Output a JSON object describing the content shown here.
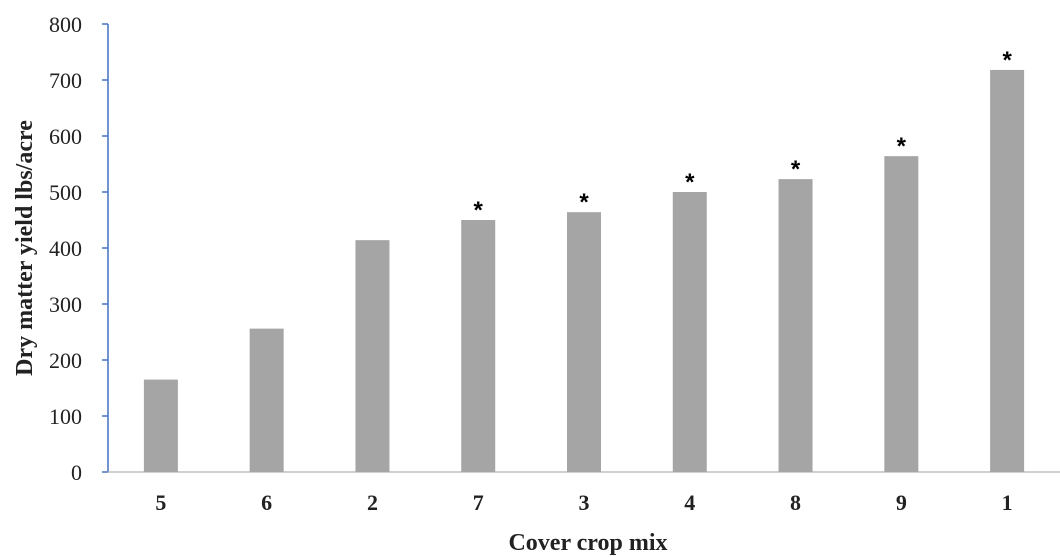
{
  "chart_data": {
    "type": "bar",
    "categories": [
      "5",
      "6",
      "2",
      "7",
      "3",
      "4",
      "8",
      "9",
      "1"
    ],
    "values": [
      165,
      256,
      414,
      450,
      464,
      500,
      523,
      564,
      718
    ],
    "significance": [
      "",
      "",
      "",
      "*",
      "*",
      "*",
      "*",
      "*",
      "*"
    ],
    "xlabel": "Cover crop mix",
    "ylabel": "Dry matter yield lbs/acre",
    "ylim": [
      0,
      800
    ],
    "yticks": [
      0,
      100,
      200,
      300,
      400,
      500,
      600,
      700,
      800
    ],
    "grid": false,
    "legend": "none",
    "colors": {
      "bar": "#a5a5a5",
      "axis": "#4472c4",
      "baseline": "#bfbfbf",
      "text": "#222222"
    }
  }
}
